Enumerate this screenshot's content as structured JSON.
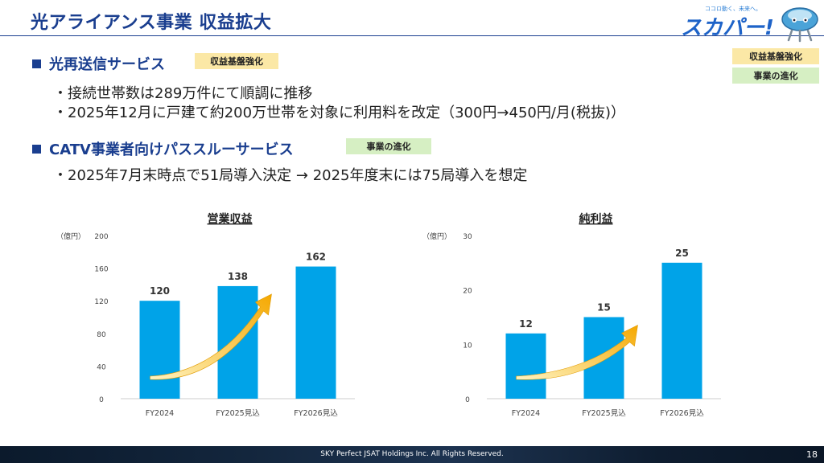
{
  "title": "光アライアンス事業 収益拡大",
  "logo": {
    "text": "スカパー!",
    "tagline": "ココロ動く、未来へ。"
  },
  "legend": {
    "badge1": "収益基盤強化",
    "badge2": "事業の進化"
  },
  "sections": [
    {
      "heading": "光再送信サービス",
      "tag": "収益基盤強化",
      "bullets": [
        "・接続世帯数は289万件にて順調に推移",
        "・2025年12月に戸建て約200万世帯を対象に利用料を改定（300円→450円/月(税抜)）"
      ]
    },
    {
      "heading": "CATV事業者向けパススルーサービス",
      "tag": "事業の進化",
      "bullets": [
        "・2025年7月末時点で51局導入決定 → 2025年度末には75局導入を想定"
      ]
    }
  ],
  "colors": {
    "bar": "#00a3e8",
    "title": "#1a3e8f",
    "arrow": "#f5a800",
    "badge_yellow": "#fbe8a6",
    "badge_green": "#d6efc3"
  },
  "chart_data": [
    {
      "type": "bar",
      "title": "営業収益",
      "unit": "（億円）",
      "categories": [
        "FY2024",
        "FY2025見込",
        "FY2026見込"
      ],
      "values": [
        120,
        138,
        162
      ],
      "ylim": [
        0,
        200
      ],
      "ticks": [
        0,
        40,
        80,
        120,
        160,
        200
      ],
      "grid": false
    },
    {
      "type": "bar",
      "title": "純利益",
      "unit": "（億円）",
      "categories": [
        "FY2024",
        "FY2025見込",
        "FY2026見込"
      ],
      "values": [
        12,
        15,
        25
      ],
      "ylim": [
        0,
        30
      ],
      "ticks": [
        0,
        10,
        20,
        30
      ],
      "grid": false
    }
  ],
  "footer": {
    "copyright": "SKY Perfect JSAT Holdings Inc. All Rights Reserved.",
    "page": "18"
  }
}
